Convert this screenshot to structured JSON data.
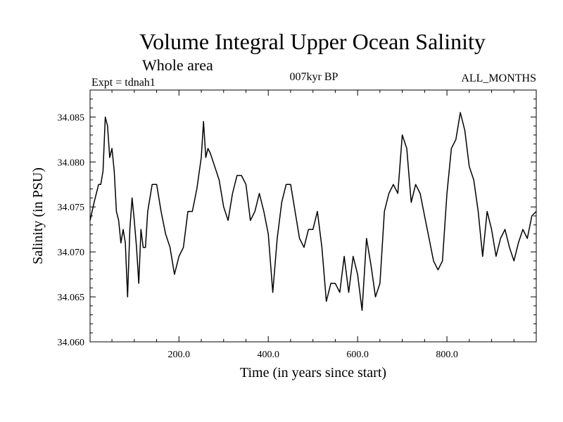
{
  "chart_data": {
    "type": "line",
    "title": "Volume Integral Upper Ocean Salinity",
    "subtitle": "Whole area",
    "expt_label": "Expt = tdnah1",
    "period_label": "007kyr BP",
    "months_label": "ALL_MONTHS",
    "xlabel": "Time (in years since start)",
    "ylabel": "Salinity (in PSU)",
    "xlim": [
      1,
      1000
    ],
    "ylim": [
      34.06,
      34.088
    ],
    "xticks": [
      200,
      400,
      600,
      800
    ],
    "xtick_labels": [
      "200.0",
      "400.0",
      "600.0",
      "800.0"
    ],
    "yticks": [
      34.06,
      34.065,
      34.07,
      34.075,
      34.08,
      34.085
    ],
    "ytick_labels": [
      "34.060",
      "34.065",
      "34.070",
      "34.075",
      "34.080",
      "34.085"
    ],
    "series": [
      {
        "name": "salinity",
        "x": [
          1,
          10,
          20,
          25,
          30,
          35,
          40,
          45,
          50,
          55,
          60,
          65,
          70,
          75,
          80,
          85,
          90,
          95,
          100,
          105,
          110,
          115,
          120,
          125,
          130,
          140,
          150,
          160,
          170,
          180,
          190,
          200,
          210,
          220,
          230,
          240,
          250,
          255,
          260,
          265,
          270,
          280,
          290,
          300,
          310,
          320,
          330,
          340,
          350,
          360,
          370,
          380,
          390,
          400,
          410,
          420,
          430,
          440,
          450,
          460,
          470,
          480,
          490,
          500,
          510,
          520,
          530,
          540,
          550,
          560,
          570,
          580,
          590,
          600,
          610,
          620,
          630,
          640,
          650,
          660,
          670,
          680,
          690,
          700,
          710,
          720,
          730,
          740,
          750,
          760,
          770,
          780,
          790,
          800,
          810,
          820,
          830,
          840,
          850,
          860,
          870,
          880,
          890,
          900,
          910,
          920,
          930,
          940,
          950,
          960,
          970,
          980,
          990,
          1000
        ],
        "values": [
          34.0735,
          34.0755,
          34.0775,
          34.0775,
          34.079,
          34.085,
          34.084,
          34.0805,
          34.0815,
          34.079,
          34.0745,
          34.0735,
          34.071,
          34.0725,
          34.071,
          34.065,
          34.0725,
          34.076,
          34.0735,
          34.0705,
          34.0665,
          34.0725,
          34.0705,
          34.0705,
          34.0745,
          34.0775,
          34.0775,
          34.0745,
          34.072,
          34.0705,
          34.0675,
          34.0695,
          34.0705,
          34.0745,
          34.0745,
          34.077,
          34.0805,
          34.0845,
          34.0805,
          34.0815,
          34.081,
          34.0795,
          34.078,
          34.075,
          34.0735,
          34.0765,
          34.0785,
          34.0785,
          34.0775,
          34.0735,
          34.0745,
          34.0765,
          34.0745,
          34.072,
          34.0655,
          34.0715,
          34.0755,
          34.0775,
          34.0775,
          34.0745,
          34.0715,
          34.0705,
          34.0725,
          34.0725,
          34.0745,
          34.0705,
          34.0645,
          34.0665,
          34.0665,
          34.0655,
          34.0695,
          34.0655,
          34.0695,
          34.0675,
          34.0635,
          34.0715,
          34.0685,
          34.065,
          34.0665,
          34.0745,
          34.0765,
          34.0775,
          34.0765,
          34.083,
          34.0815,
          34.0755,
          34.0775,
          34.0765,
          34.074,
          34.0715,
          34.069,
          34.068,
          34.069,
          34.0765,
          34.0815,
          34.0825,
          34.0855,
          34.0835,
          34.0795,
          34.078,
          34.0745,
          34.0695,
          34.0745,
          34.0725,
          34.0695,
          34.0715,
          34.0725,
          34.0705,
          34.069,
          34.071,
          34.0725,
          34.0715,
          34.074,
          34.0745
        ]
      }
    ]
  }
}
